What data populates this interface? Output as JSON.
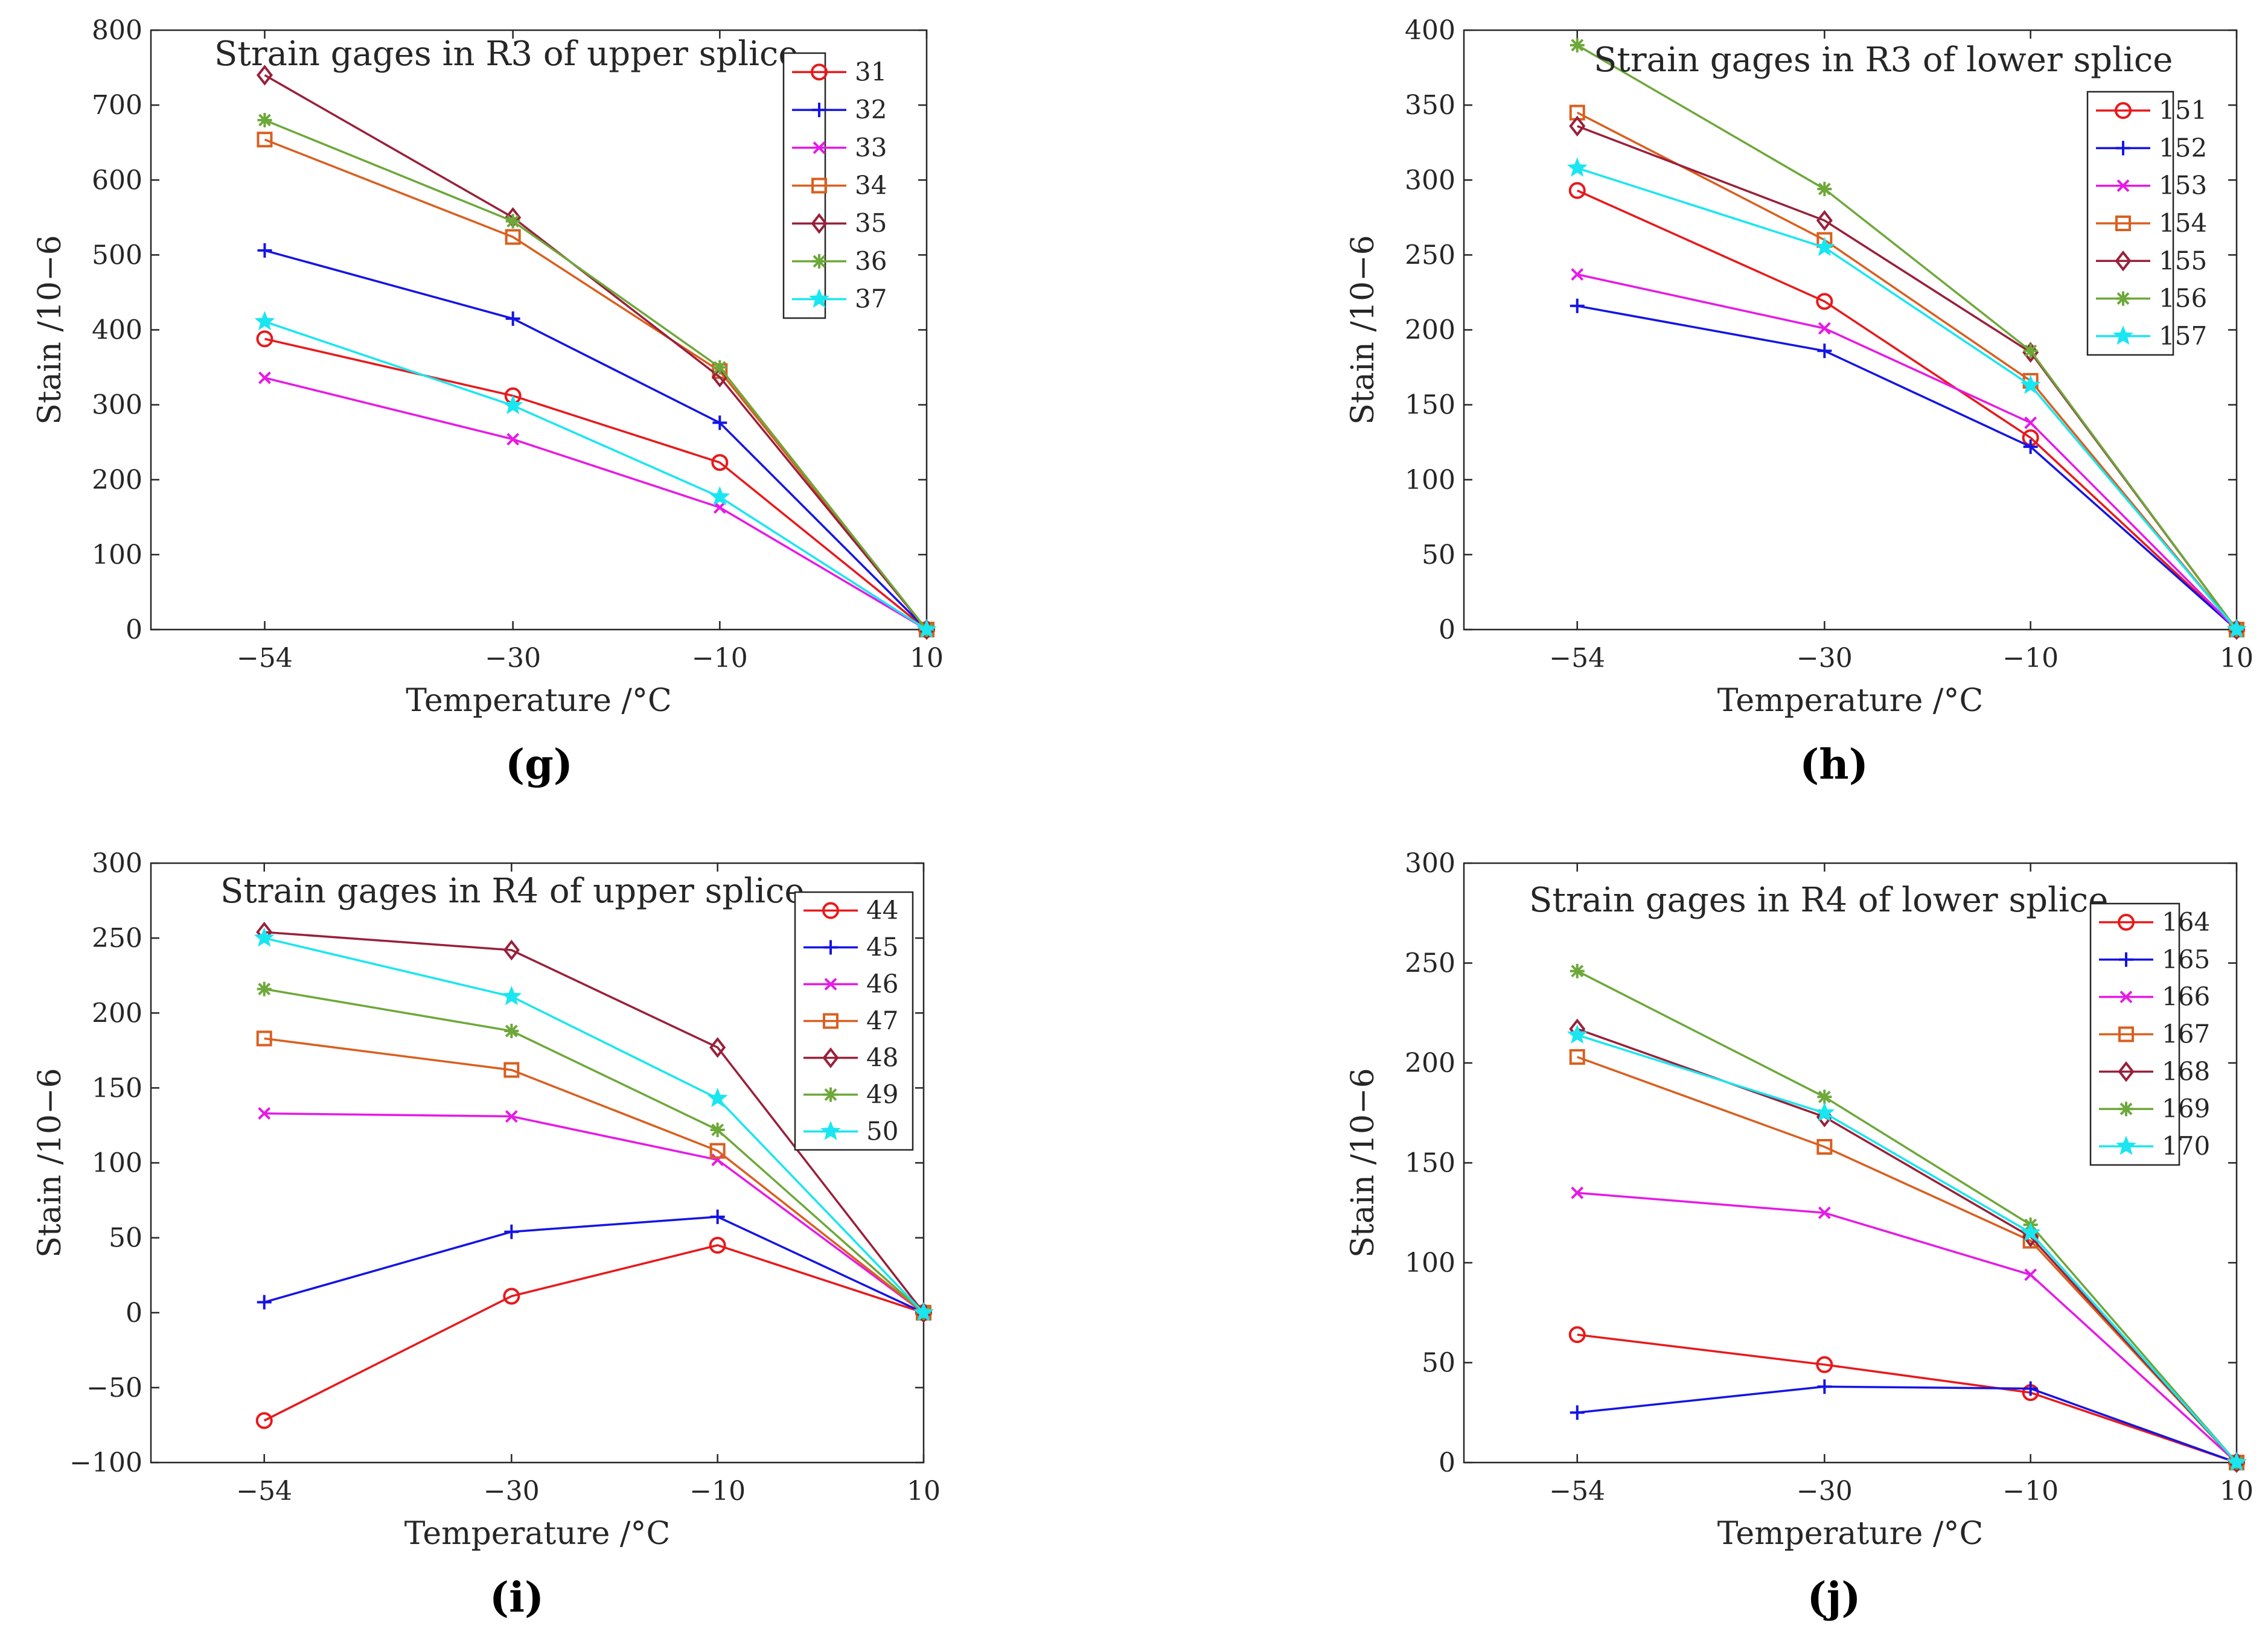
{
  "colors": {
    "axis": "#262626",
    "legend_border": "#262626",
    "series": [
      "#e8191b",
      "#1414e6",
      "#e619e6",
      "#d95f1f",
      "#99203a",
      "#6da83a",
      "#19e6f0"
    ]
  },
  "chart_data": [
    {
      "type": "line",
      "panel": "(g)",
      "title": "Strain gages in R3 of upper splice",
      "xlabel": "Temperature /°C",
      "ylabel": "Stain /10−6",
      "x": [
        -54,
        -30,
        -10,
        10
      ],
      "x_ticks": [
        "−54",
        "−30",
        "−10",
        "10"
      ],
      "ylim": [
        0,
        800
      ],
      "y_ticks": [
        "0",
        "100",
        "200",
        "300",
        "400",
        "500",
        "600",
        "700",
        "800"
      ],
      "legend_position": "top-right",
      "series": [
        {
          "name": "31",
          "marker": "circle",
          "values": [
            388,
            312,
            223,
            0
          ]
        },
        {
          "name": "32",
          "marker": "plus",
          "values": [
            506,
            415,
            276,
            0
          ]
        },
        {
          "name": "33",
          "marker": "x",
          "values": [
            336,
            254,
            163,
            0
          ]
        },
        {
          "name": "34",
          "marker": "square",
          "values": [
            654,
            524,
            345,
            0
          ]
        },
        {
          "name": "35",
          "marker": "diamond",
          "values": [
            740,
            550,
            337,
            0
          ]
        },
        {
          "name": "36",
          "marker": "asterisk",
          "values": [
            680,
            545,
            350,
            0
          ]
        },
        {
          "name": "37",
          "marker": "star",
          "values": [
            411,
            299,
            177,
            0
          ]
        }
      ]
    },
    {
      "type": "line",
      "panel": "(h)",
      "title": "Strain gages in R3 of lower splice",
      "xlabel": "Temperature /°C",
      "ylabel": "Stain /10−6",
      "x": [
        -54,
        -30,
        -10,
        10
      ],
      "x_ticks": [
        "−54",
        "−30",
        "−10",
        "10"
      ],
      "ylim": [
        0,
        400
      ],
      "y_ticks": [
        "0",
        "50",
        "100",
        "150",
        "200",
        "250",
        "300",
        "350",
        "400"
      ],
      "legend_position": "top-right",
      "series": [
        {
          "name": "151",
          "marker": "circle",
          "values": [
            293,
            219,
            128,
            0
          ]
        },
        {
          "name": "152",
          "marker": "plus",
          "values": [
            216,
            186,
            122,
            0
          ]
        },
        {
          "name": "153",
          "marker": "x",
          "values": [
            237,
            201,
            138,
            0
          ]
        },
        {
          "name": "154",
          "marker": "square",
          "values": [
            345,
            260,
            166,
            0
          ]
        },
        {
          "name": "155",
          "marker": "diamond",
          "values": [
            336,
            273,
            185,
            0
          ]
        },
        {
          "name": "156",
          "marker": "asterisk",
          "values": [
            390,
            294,
            186,
            0
          ]
        },
        {
          "name": "157",
          "marker": "star",
          "values": [
            308,
            255,
            163,
            0
          ]
        }
      ]
    },
    {
      "type": "line",
      "panel": "(i)",
      "title": "Strain gages in R4 of upper splice",
      "xlabel": "Temperature /°C",
      "ylabel": "Stain /10−6",
      "x": [
        -54,
        -30,
        -10,
        10
      ],
      "x_ticks": [
        "−54",
        "−30",
        "−10",
        "10"
      ],
      "ylim": [
        -100,
        300
      ],
      "y_ticks": [
        "−100",
        "−50",
        "0",
        "50",
        "100",
        "150",
        "200",
        "250",
        "300"
      ],
      "legend_position": "top-right",
      "series": [
        {
          "name": "44",
          "marker": "circle",
          "values": [
            -72,
            11,
            45,
            0
          ]
        },
        {
          "name": "45",
          "marker": "plus",
          "values": [
            7,
            54,
            64,
            0
          ]
        },
        {
          "name": "46",
          "marker": "x",
          "values": [
            133,
            131,
            102,
            0
          ]
        },
        {
          "name": "47",
          "marker": "square",
          "values": [
            183,
            162,
            108,
            0
          ]
        },
        {
          "name": "48",
          "marker": "diamond",
          "values": [
            254,
            242,
            177,
            0
          ]
        },
        {
          "name": "49",
          "marker": "asterisk",
          "values": [
            216,
            188,
            122,
            0
          ]
        },
        {
          "name": "50",
          "marker": "star",
          "values": [
            250,
            211,
            143,
            0
          ]
        }
      ]
    },
    {
      "type": "line",
      "panel": "(j)",
      "title": "Strain gages in R4 of lower splice",
      "xlabel": "Temperature /°C",
      "ylabel": "Stain /10−6",
      "x": [
        -54,
        -30,
        -10,
        10
      ],
      "x_ticks": [
        "−54",
        "−30",
        "−10",
        "10"
      ],
      "ylim": [
        0,
        300
      ],
      "y_ticks": [
        "0",
        "50",
        "100",
        "150",
        "200",
        "250",
        "300"
      ],
      "legend_position": "top-right",
      "series": [
        {
          "name": "164",
          "marker": "circle",
          "values": [
            64,
            49,
            35,
            0
          ]
        },
        {
          "name": "165",
          "marker": "plus",
          "values": [
            25,
            38,
            37,
            0
          ]
        },
        {
          "name": "166",
          "marker": "x",
          "values": [
            135,
            125,
            94,
            0
          ]
        },
        {
          "name": "167",
          "marker": "square",
          "values": [
            203,
            158,
            111,
            0
          ]
        },
        {
          "name": "168",
          "marker": "diamond",
          "values": [
            217,
            173,
            113,
            0
          ]
        },
        {
          "name": "169",
          "marker": "asterisk",
          "values": [
            246,
            183,
            119,
            0
          ]
        },
        {
          "name": "170",
          "marker": "star",
          "values": [
            214,
            175,
            115,
            0
          ]
        }
      ]
    }
  ]
}
